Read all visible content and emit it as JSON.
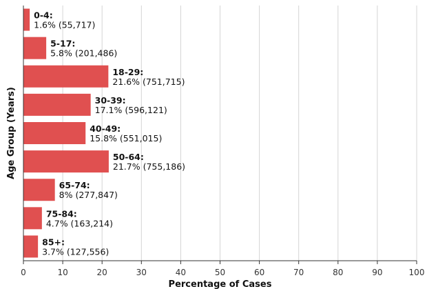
{
  "chart_data": {
    "type": "bar",
    "orientation": "horizontal",
    "categories": [
      "0-4",
      "5-17",
      "18-29",
      "30-39",
      "40-49",
      "50-64",
      "65-74",
      "75-84",
      "85+"
    ],
    "values": [
      1.6,
      5.8,
      21.6,
      17.1,
      15.8,
      21.7,
      8,
      4.7,
      3.7
    ],
    "cat_labels": [
      "0-4:",
      "5-17:",
      "18-29:",
      "30-39:",
      "40-49:",
      "50-64:",
      "65-74:",
      "75-84:",
      "85+:"
    ],
    "value_labels": [
      "1.6% (55,717)",
      "5.8% (201,486)",
      "21.6% (751,715)",
      "17.1% (596,121)",
      "15.8% (551,015)",
      "21.7% (755,186)",
      "8% (277,847)",
      "4.7% (163,214)",
      "3.7% (127,556)"
    ],
    "counts": [
      55717,
      201486,
      751715,
      596121,
      551015,
      755186,
      277847,
      163214,
      127556
    ],
    "xlabel": "Percentage of Cases",
    "ylabel": "Age Group (Years)",
    "xlim": [
      0,
      100
    ],
    "xticks": [
      "0",
      "10",
      "20",
      "30",
      "40",
      "50",
      "60",
      "70",
      "80",
      "90",
      "100"
    ],
    "grid": true,
    "bar_color": "#e05050"
  }
}
